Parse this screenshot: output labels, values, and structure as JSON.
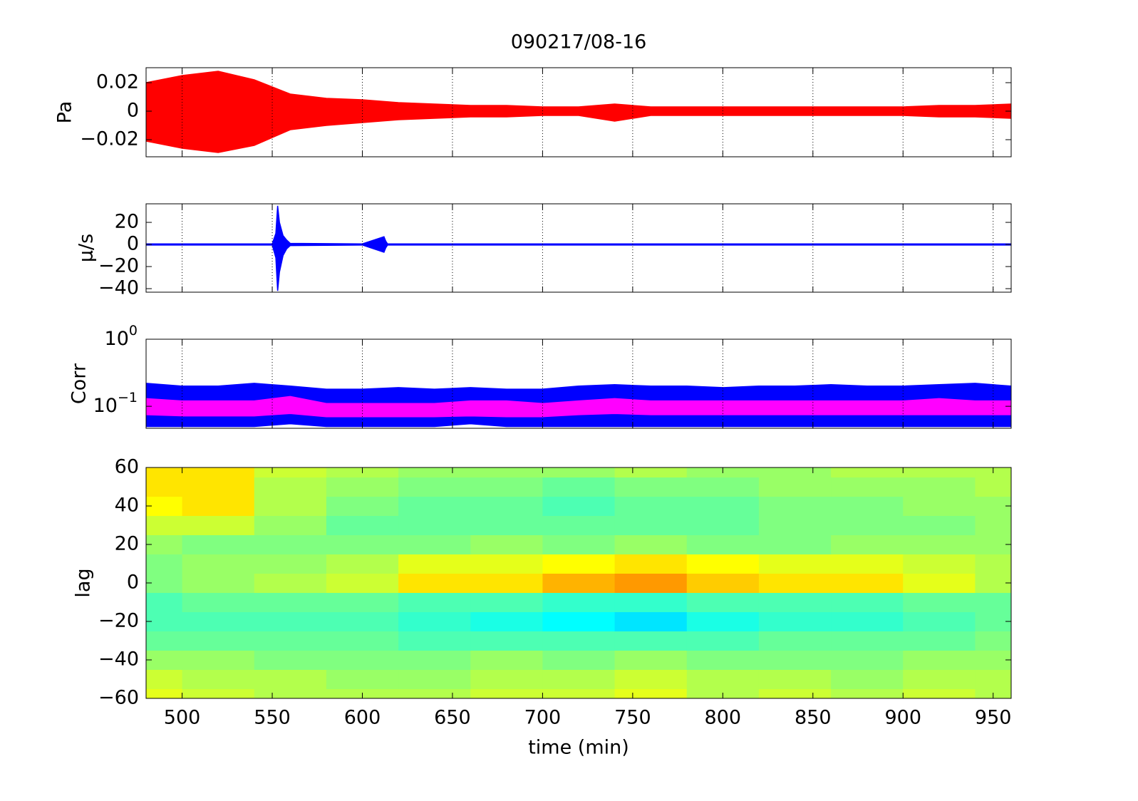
{
  "chart_data": [
    {
      "type": "band",
      "title": "090217/08-16",
      "ylabel": "Pa",
      "xlim": [
        480,
        960
      ],
      "xticks": [
        500,
        550,
        600,
        650,
        700,
        750,
        800,
        850,
        900,
        950
      ],
      "ylim": [
        -0.032,
        0.0305
      ],
      "yticks": [
        {
          "value": -0.02,
          "label": "−0.02"
        },
        0,
        0.02
      ],
      "grid": true,
      "x": [
        480,
        500,
        520,
        540,
        560,
        580,
        600,
        620,
        640,
        660,
        680,
        700,
        720,
        740,
        760,
        780,
        800,
        820,
        840,
        860,
        880,
        900,
        920,
        940,
        960
      ],
      "series": [
        {
          "color": "#ff0000",
          "upper": [
            0.02,
            0.025,
            0.028,
            0.022,
            0.012,
            0.009,
            0.008,
            0.006,
            0.005,
            0.004,
            0.004,
            0.003,
            0.003,
            0.005,
            0.003,
            0.003,
            0.003,
            0.003,
            0.003,
            0.003,
            0.003,
            0.003,
            0.004,
            0.004,
            0.005
          ],
          "lower": [
            -0.021,
            -0.026,
            -0.029,
            -0.024,
            -0.013,
            -0.01,
            -0.008,
            -0.006,
            -0.005,
            -0.004,
            -0.004,
            -0.003,
            -0.003,
            -0.007,
            -0.003,
            -0.003,
            -0.003,
            -0.003,
            -0.003,
            -0.003,
            -0.003,
            -0.003,
            -0.004,
            -0.004,
            -0.005
          ]
        }
      ]
    },
    {
      "type": "band",
      "ylabel": "μ/s",
      "xlim": [
        480,
        960
      ],
      "xticks": [
        500,
        550,
        600,
        650,
        700,
        750,
        800,
        850,
        900,
        950
      ],
      "ylim": [
        -43.2,
        36.8
      ],
      "yticks": [
        {
          "value": -40,
          "label": "−40"
        },
        {
          "value": -20,
          "label": "−20"
        },
        0,
        20
      ],
      "grid": true,
      "x": [
        480,
        550,
        552,
        553,
        554,
        556,
        558,
        560,
        600,
        612,
        613,
        614,
        650,
        960
      ],
      "series": [
        {
          "color": "#0000ff",
          "upper": [
            0.5,
            0.5,
            10,
            35,
            20,
            8,
            4,
            1,
            0.5,
            7,
            3,
            0.5,
            0.5,
            0.5
          ],
          "lower": [
            -0.5,
            -0.5,
            -12,
            -42,
            -25,
            -10,
            -4,
            -1,
            -0.5,
            -7,
            -3,
            -0.5,
            -0.5,
            -0.5
          ]
        }
      ]
    },
    {
      "type": "band",
      "ylabel": "Corr",
      "log": true,
      "xlim": [
        480,
        960
      ],
      "xticks": [
        500,
        550,
        600,
        650,
        700,
        750,
        800,
        850,
        900,
        950
      ],
      "ylim": [
        0.047,
        1
      ],
      "yticks": [
        {
          "value": 0.1,
          "label": "10",
          "exp": "−1"
        },
        {
          "value": 1,
          "label": "10",
          "exp": "0"
        }
      ],
      "grid": true,
      "x": [
        480,
        500,
        520,
        540,
        560,
        580,
        600,
        620,
        640,
        660,
        680,
        700,
        720,
        740,
        760,
        780,
        800,
        820,
        840,
        860,
        880,
        900,
        920,
        940,
        960
      ],
      "series": [
        {
          "color": "#0000ff",
          "upper": [
            0.22,
            0.2,
            0.2,
            0.22,
            0.2,
            0.18,
            0.18,
            0.19,
            0.18,
            0.19,
            0.18,
            0.18,
            0.2,
            0.21,
            0.2,
            0.2,
            0.19,
            0.2,
            0.2,
            0.21,
            0.2,
            0.2,
            0.21,
            0.22,
            0.2
          ],
          "lower": [
            0.05,
            0.05,
            0.05,
            0.05,
            0.055,
            0.05,
            0.05,
            0.05,
            0.05,
            0.055,
            0.05,
            0.05,
            0.05,
            0.05,
            0.05,
            0.05,
            0.05,
            0.05,
            0.05,
            0.05,
            0.05,
            0.05,
            0.05,
            0.05,
            0.05
          ]
        },
        {
          "color": "#ff00ff",
          "upper": [
            0.13,
            0.12,
            0.12,
            0.12,
            0.14,
            0.11,
            0.11,
            0.11,
            0.11,
            0.12,
            0.12,
            0.11,
            0.12,
            0.13,
            0.12,
            0.12,
            0.12,
            0.12,
            0.12,
            0.12,
            0.12,
            0.12,
            0.13,
            0.12,
            0.12
          ],
          "lower": [
            0.075,
            0.072,
            0.072,
            0.072,
            0.078,
            0.07,
            0.07,
            0.07,
            0.07,
            0.072,
            0.07,
            0.07,
            0.075,
            0.078,
            0.075,
            0.075,
            0.075,
            0.075,
            0.075,
            0.075,
            0.075,
            0.075,
            0.075,
            0.075,
            0.075
          ]
        }
      ]
    },
    {
      "type": "heatmap",
      "ylabel": "lag",
      "xlabel": "time (min)",
      "xlim": [
        480,
        960
      ],
      "xticks": [
        500,
        550,
        600,
        650,
        700,
        750,
        800,
        850,
        900,
        950
      ],
      "ylim": [
        -60,
        60
      ],
      "yticks": [
        {
          "value": -60,
          "label": "−60"
        },
        {
          "value": -40,
          "label": "−40"
        },
        {
          "value": -20,
          "label": "−20"
        },
        0,
        20,
        40,
        60
      ],
      "colormap": "jet",
      "clim": [
        -1,
        1
      ],
      "x": [
        480,
        520,
        560,
        600,
        640,
        680,
        720,
        760,
        800,
        840,
        880,
        920,
        960
      ],
      "y": [
        -60,
        -50,
        -40,
        -30,
        -20,
        -10,
        0,
        10,
        20,
        30,
        40,
        50,
        60
      ],
      "z": [
        [
          0.2,
          0.15,
          0.1,
          0.1,
          0.1,
          0.15,
          0.15,
          0.2,
          0.1,
          0.15,
          0.1,
          0.15,
          0.1
        ],
        [
          0.15,
          0.1,
          0.1,
          0.05,
          0.05,
          0.1,
          0.1,
          0.15,
          0.1,
          0.1,
          0.05,
          0.1,
          0.1
        ],
        [
          0.05,
          0.05,
          0.0,
          0.0,
          0.0,
          0.05,
          0.0,
          0.05,
          0.0,
          0.0,
          0.0,
          0.05,
          0.05
        ],
        [
          -0.05,
          -0.05,
          -0.05,
          -0.05,
          -0.1,
          -0.1,
          -0.1,
          -0.1,
          -0.1,
          -0.05,
          -0.05,
          -0.05,
          0.0
        ],
        [
          -0.1,
          -0.1,
          -0.1,
          -0.1,
          -0.15,
          -0.2,
          -0.25,
          -0.3,
          -0.2,
          -0.15,
          -0.15,
          -0.1,
          -0.05
        ],
        [
          -0.1,
          -0.05,
          -0.05,
          -0.05,
          -0.1,
          -0.1,
          -0.15,
          -0.15,
          -0.1,
          -0.1,
          -0.1,
          -0.05,
          -0.05
        ],
        [
          0.0,
          0.05,
          0.1,
          0.15,
          0.3,
          0.3,
          0.4,
          0.45,
          0.35,
          0.3,
          0.3,
          0.2,
          0.1
        ],
        [
          0.0,
          0.05,
          0.05,
          0.1,
          0.2,
          0.2,
          0.25,
          0.3,
          0.25,
          0.2,
          0.2,
          0.15,
          0.1
        ],
        [
          0.05,
          0.0,
          0.0,
          0.0,
          0.0,
          0.05,
          0.0,
          0.05,
          0.0,
          0.0,
          0.05,
          0.05,
          0.05
        ],
        [
          0.15,
          0.15,
          0.05,
          -0.05,
          -0.05,
          -0.05,
          -0.05,
          -0.05,
          -0.05,
          0.0,
          0.0,
          0.0,
          0.05
        ],
        [
          0.25,
          0.3,
          0.1,
          0.0,
          -0.05,
          -0.05,
          -0.1,
          -0.05,
          -0.05,
          0.0,
          0.0,
          0.05,
          0.05
        ],
        [
          0.3,
          0.3,
          0.1,
          0.05,
          0.0,
          0.0,
          -0.05,
          0.0,
          0.0,
          0.05,
          0.05,
          0.05,
          0.1
        ],
        [
          0.3,
          0.3,
          0.15,
          0.1,
          0.05,
          0.05,
          0.05,
          0.1,
          0.05,
          0.05,
          0.1,
          0.1,
          0.1
        ]
      ]
    }
  ]
}
